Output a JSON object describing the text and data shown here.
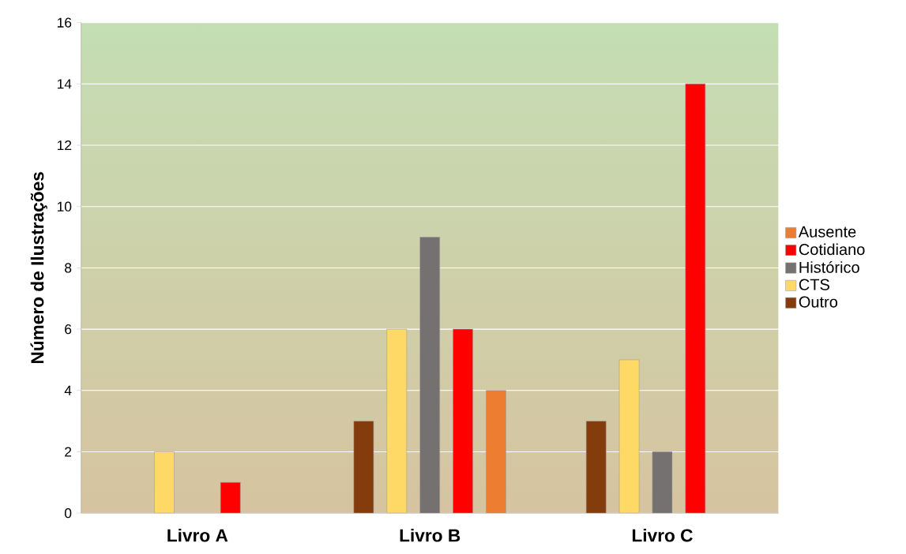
{
  "chart_data": {
    "type": "bar",
    "ylabel": "Número de Ilustrações",
    "categories": [
      "Livro A",
      "Livro B",
      "Livro C"
    ],
    "series": [
      {
        "name": "Outro",
        "color": "#843c0c",
        "values": [
          null,
          3,
          3
        ]
      },
      {
        "name": "CTS",
        "color": "#ffd966",
        "values": [
          2,
          6,
          5
        ]
      },
      {
        "name": "Histórico",
        "color": "#767171",
        "values": [
          null,
          9,
          2
        ]
      },
      {
        "name": "Cotidiano",
        "color": "#ff0000",
        "values": [
          1,
          6,
          14
        ]
      },
      {
        "name": "Ausente",
        "color": "#ed7d31",
        "values": [
          null,
          4,
          null
        ]
      }
    ],
    "ylim": [
      0,
      16
    ],
    "yticks": [
      0,
      2,
      4,
      6,
      8,
      10,
      12,
      14,
      16
    ],
    "grid": "y",
    "legend": "right"
  }
}
